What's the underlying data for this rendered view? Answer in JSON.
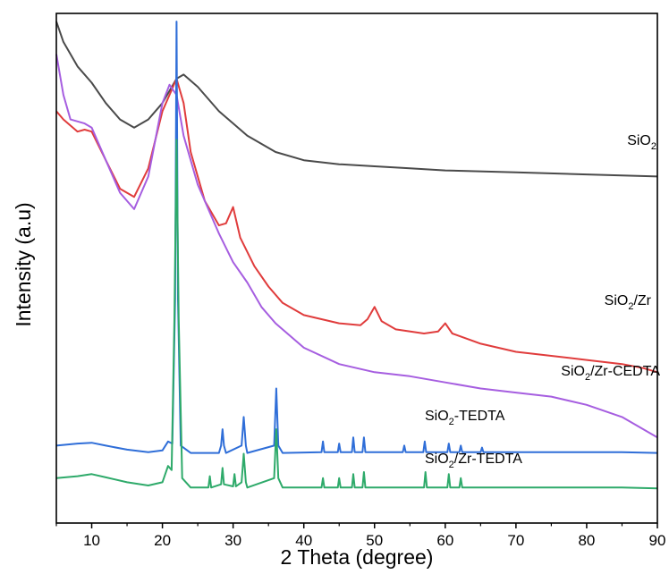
{
  "chart_data": {
    "type": "line",
    "xlabel": "2 Theta (degree)",
    "ylabel": "Intensity (a.u)",
    "xlim": [
      5,
      90
    ],
    "xticks": [
      10,
      20,
      30,
      40,
      50,
      60,
      70,
      80,
      90
    ],
    "yticks_shown": false,
    "grid": false,
    "legend": "inline labels at right",
    "series": [
      {
        "name": "SiO2",
        "label_main": "SiO",
        "label_sub": "2",
        "label_rest": "",
        "color": "#4a4a4a",
        "points": [
          [
            5,
            98
          ],
          [
            6,
            93
          ],
          [
            8,
            87
          ],
          [
            10,
            83
          ],
          [
            12,
            78
          ],
          [
            14,
            74
          ],
          [
            16,
            72
          ],
          [
            18,
            74
          ],
          [
            20,
            78
          ],
          [
            22,
            84
          ],
          [
            23,
            85
          ],
          [
            25,
            82
          ],
          [
            28,
            76
          ],
          [
            32,
            70
          ],
          [
            36,
            66
          ],
          [
            40,
            64
          ],
          [
            45,
            63
          ],
          [
            50,
            62.5
          ],
          [
            55,
            62
          ],
          [
            60,
            61.5
          ],
          [
            70,
            61
          ],
          [
            80,
            60.5
          ],
          [
            90,
            60
          ]
        ]
      },
      {
        "name": "SiO2/Zr",
        "label_main": "SiO",
        "label_sub": "2",
        "label_rest": "/Zr",
        "color": "#e03c3c",
        "points": [
          [
            5,
            76
          ],
          [
            6,
            74
          ],
          [
            8,
            71
          ],
          [
            9,
            71.5
          ],
          [
            10,
            71
          ],
          [
            12,
            64
          ],
          [
            14,
            57
          ],
          [
            16,
            55
          ],
          [
            18,
            62
          ],
          [
            20,
            76
          ],
          [
            21,
            80
          ],
          [
            22,
            84
          ],
          [
            23,
            78
          ],
          [
            24,
            66
          ],
          [
            26,
            54
          ],
          [
            28,
            48
          ],
          [
            29,
            48.5
          ],
          [
            30,
            52.5
          ],
          [
            31,
            45
          ],
          [
            33,
            38
          ],
          [
            35,
            33
          ],
          [
            37,
            29
          ],
          [
            40,
            26
          ],
          [
            45,
            24
          ],
          [
            48,
            23.5
          ],
          [
            49,
            25
          ],
          [
            50,
            28
          ],
          [
            51,
            24.5
          ],
          [
            53,
            22.5
          ],
          [
            57,
            21.5
          ],
          [
            59,
            22
          ],
          [
            60,
            24
          ],
          [
            61,
            21.5
          ],
          [
            65,
            19
          ],
          [
            70,
            17
          ],
          [
            75,
            16
          ],
          [
            80,
            15
          ],
          [
            85,
            14
          ],
          [
            88,
            13
          ],
          [
            90,
            12
          ]
        ]
      },
      {
        "name": "SiO2/Zr-CEDTA",
        "label_main": "SiO",
        "label_sub": "2",
        "label_rest": "/Zr-CEDTA",
        "color": "#a65ee0",
        "points": [
          [
            5,
            90
          ],
          [
            6,
            80
          ],
          [
            7,
            74
          ],
          [
            9,
            73
          ],
          [
            10,
            72
          ],
          [
            12,
            64
          ],
          [
            14,
            56
          ],
          [
            16,
            52
          ],
          [
            18,
            60
          ],
          [
            20,
            78
          ],
          [
            21,
            82.5
          ],
          [
            22,
            80
          ],
          [
            23,
            70
          ],
          [
            25,
            58
          ],
          [
            28,
            46
          ],
          [
            30,
            39
          ],
          [
            32,
            34
          ],
          [
            34,
            28
          ],
          [
            36,
            24
          ],
          [
            40,
            18
          ],
          [
            45,
            14
          ],
          [
            50,
            12
          ],
          [
            55,
            11
          ],
          [
            60,
            9.5
          ],
          [
            65,
            8
          ],
          [
            70,
            7
          ],
          [
            75,
            6
          ],
          [
            80,
            4
          ],
          [
            85,
            1
          ],
          [
            90,
            -4
          ]
        ]
      },
      {
        "name": "SiO2-TEDTA",
        "label_main": "SiO",
        "label_sub": "2",
        "label_rest": "-TEDTA",
        "color": "#2f6ed8",
        "points": [
          [
            5,
            -6
          ],
          [
            8,
            -5.5
          ],
          [
            10,
            -5.3
          ],
          [
            12,
            -6
          ],
          [
            15,
            -7
          ],
          [
            18,
            -7.6
          ],
          [
            20,
            -7.2
          ],
          [
            20.8,
            -5
          ],
          [
            21.4,
            -5.5
          ],
          [
            21.8,
            30
          ],
          [
            22,
            98
          ],
          [
            22.2,
            30
          ],
          [
            22.6,
            -6
          ],
          [
            24,
            -7.8
          ],
          [
            28,
            -7.8
          ],
          [
            28.3,
            -6
          ],
          [
            28.5,
            -2
          ],
          [
            28.7,
            -6
          ],
          [
            29,
            -7.8
          ],
          [
            31.2,
            -6
          ],
          [
            31.5,
            1
          ],
          [
            31.8,
            -6
          ],
          [
            32,
            -7.8
          ],
          [
            35.8,
            -6
          ],
          [
            36.1,
            8
          ],
          [
            36.4,
            -6
          ],
          [
            37,
            -7.8
          ],
          [
            42.5,
            -7.6
          ],
          [
            42.7,
            -5
          ],
          [
            42.9,
            -7.6
          ],
          [
            44.8,
            -7.6
          ],
          [
            45,
            -5.5
          ],
          [
            45.2,
            -7.6
          ],
          [
            46.8,
            -7.6
          ],
          [
            47,
            -4
          ],
          [
            47.2,
            -7.6
          ],
          [
            48.3,
            -7.6
          ],
          [
            48.5,
            -4
          ],
          [
            48.7,
            -7.6
          ],
          [
            54,
            -7.6
          ],
          [
            54.2,
            -6
          ],
          [
            54.4,
            -7.6
          ],
          [
            56.9,
            -7.6
          ],
          [
            57.1,
            -5
          ],
          [
            57.3,
            -7.6
          ],
          [
            60.3,
            -7.6
          ],
          [
            60.5,
            -5.5
          ],
          [
            60.7,
            -7.6
          ],
          [
            62,
            -7.6
          ],
          [
            62.2,
            -6
          ],
          [
            62.4,
            -7.6
          ],
          [
            65,
            -7.6
          ],
          [
            65.2,
            -6.5
          ],
          [
            65.4,
            -7.6
          ],
          [
            70,
            -7.6
          ],
          [
            75,
            -7.6
          ],
          [
            80,
            -7.6
          ],
          [
            85,
            -7.6
          ],
          [
            90,
            -7.8
          ]
        ]
      },
      {
        "name": "SiO2/Zr-TEDTA",
        "label_main": "SiO",
        "label_sub": "2",
        "label_rest": "/Zr-TEDTA",
        "color": "#2eaa6a",
        "points": [
          [
            5,
            -14
          ],
          [
            8,
            -13.5
          ],
          [
            10,
            -13
          ],
          [
            12,
            -13.8
          ],
          [
            15,
            -15
          ],
          [
            18,
            -15.8
          ],
          [
            20,
            -15
          ],
          [
            20.8,
            -11
          ],
          [
            21.3,
            -12
          ],
          [
            21.7,
            25
          ],
          [
            22,
            69
          ],
          [
            22.3,
            25
          ],
          [
            22.8,
            -14
          ],
          [
            24,
            -16.3
          ],
          [
            26.5,
            -16.3
          ],
          [
            26.7,
            -13.5
          ],
          [
            26.9,
            -16.3
          ],
          [
            28.3,
            -15.5
          ],
          [
            28.5,
            -11.5
          ],
          [
            28.7,
            -15.5
          ],
          [
            30,
            -16
          ],
          [
            30.2,
            -13
          ],
          [
            30.4,
            -16
          ],
          [
            31.2,
            -15
          ],
          [
            31.5,
            -8
          ],
          [
            31.8,
            -15
          ],
          [
            32,
            -16.3
          ],
          [
            35.8,
            -14
          ],
          [
            36.1,
            -2
          ],
          [
            36.4,
            -14
          ],
          [
            37,
            -16.3
          ],
          [
            42.5,
            -16.3
          ],
          [
            42.7,
            -14
          ],
          [
            42.9,
            -16.3
          ],
          [
            44.8,
            -16.3
          ],
          [
            45,
            -14
          ],
          [
            45.2,
            -16.3
          ],
          [
            46.8,
            -16.3
          ],
          [
            47,
            -13
          ],
          [
            47.2,
            -16.3
          ],
          [
            48.3,
            -16.3
          ],
          [
            48.5,
            -12.5
          ],
          [
            48.7,
            -16.3
          ],
          [
            57,
            -16.3
          ],
          [
            57.2,
            -12.5
          ],
          [
            57.4,
            -16.3
          ],
          [
            60.3,
            -16.3
          ],
          [
            60.5,
            -13
          ],
          [
            60.7,
            -16.3
          ],
          [
            62,
            -16.3
          ],
          [
            62.2,
            -14
          ],
          [
            62.4,
            -16.3
          ],
          [
            65,
            -16.3
          ],
          [
            70,
            -16.3
          ],
          [
            75,
            -16.3
          ],
          [
            80,
            -16.3
          ],
          [
            85,
            -16.3
          ],
          [
            90,
            -16.5
          ]
        ]
      }
    ]
  }
}
